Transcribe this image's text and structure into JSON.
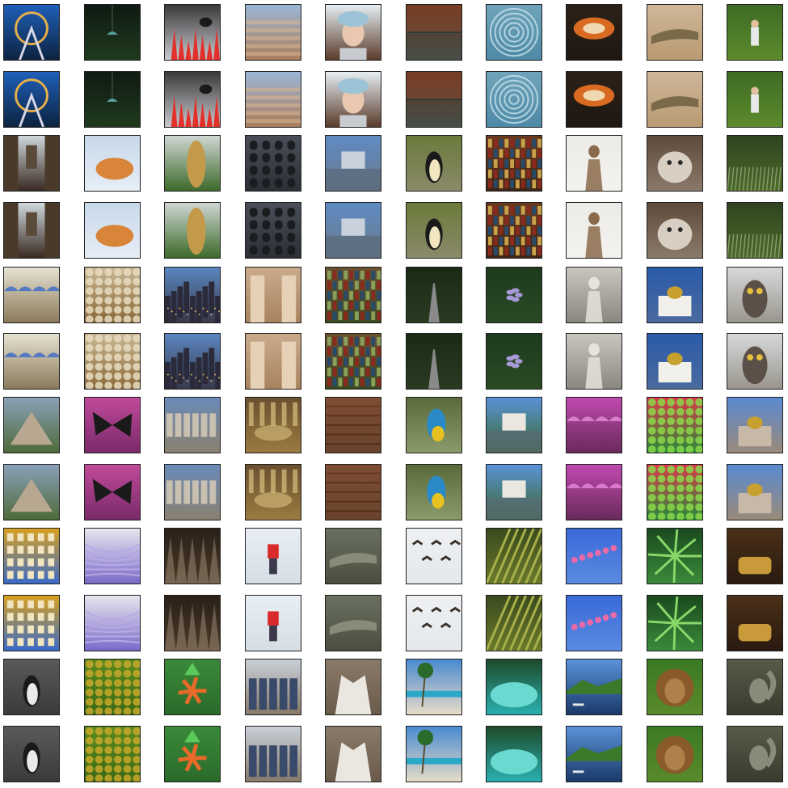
{
  "grid": {
    "rows": 12,
    "cols": 10,
    "row_pairs": [
      [
        "ferris-wheel-night",
        "hanging-lamp-dark",
        "red-bird-red-flowers",
        "colosseum-interior",
        "woman-blue-beanie",
        "autumn-lake-reflection",
        "succulent-rosette",
        "orange-mushroom",
        "crocodile-sand",
        "hiker-forest"
      ],
      [
        "brooklyn-bridge-street",
        "sleeping-fox-snow",
        "cheetah-closeup",
        "colosseum-arches",
        "castle-reflection",
        "penguin-rocks",
        "bookshelf",
        "statue-saint",
        "grumpy-cat",
        "iguana-grass"
      ],
      [
        "market-umbrellas",
        "pastries-plate",
        "city-skyline-dusk",
        "abu-simbel-statues",
        "wall-with-plants",
        "forest-boardwalk",
        "purple-flower-leaves",
        "marble-statues",
        "cathedral-white",
        "owl-perched"
      ],
      [
        "chichen-itza-pyramid",
        "butterfly-pink-flowers",
        "stone-aqueduct",
        "library-interior",
        "wooden-door-lock",
        "macaw-parrot",
        "neuschwanstein-castle",
        "pink-flower-vendor",
        "vegetable-market",
        "hagia-sophia"
      ],
      [
        "colorful-building-balconies",
        "purple-light-tunnel",
        "dark-foliage",
        "skier-red-jacket",
        "alligators-group",
        "geese-flying",
        "crop-field-rows",
        "pink-blossom-branch",
        "palm-leaf",
        "vintage-shop-car"
      ],
      [
        "penguin-rocks-bw",
        "green-fruit-pile",
        "orange-lily-flower",
        "cowboys-group",
        "white-wolf",
        "palm-beach",
        "turquoise-lake",
        "island-boats",
        "lion-grass",
        "squirrel-rock"
      ]
    ]
  },
  "colors": {
    "background": "#ffffff",
    "tile_border": "#1f1f1f"
  }
}
